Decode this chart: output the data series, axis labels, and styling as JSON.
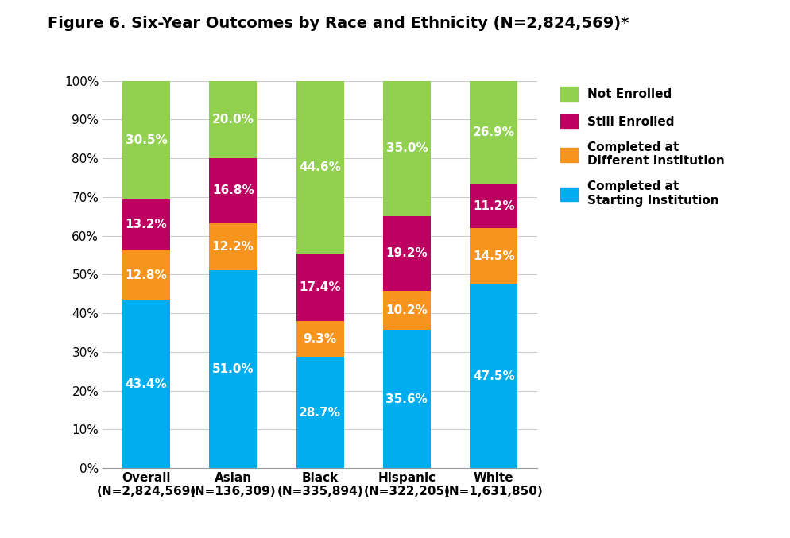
{
  "title": "Figure 6. Six-Year Outcomes by Race and Ethnicity (N=2,824,569)*",
  "categories_line1": [
    "Overall",
    "Asian",
    "Black",
    "Hispanic",
    "White"
  ],
  "categories_line2": [
    "(N=2,824,569)",
    "(N=136,309)",
    "(N=335,894)",
    "(N=322,205)",
    "(N=1,631,850)"
  ],
  "series": {
    "Completed at Starting Institution": [
      43.4,
      51.0,
      28.7,
      35.6,
      47.5
    ],
    "Completed at Different Institution": [
      12.8,
      12.2,
      9.3,
      10.2,
      14.5
    ],
    "Still Enrolled": [
      13.2,
      16.8,
      17.4,
      19.2,
      11.2
    ],
    "Not Enrolled": [
      30.5,
      20.0,
      44.6,
      35.0,
      26.9
    ]
  },
  "series_order": [
    "Completed at Starting Institution",
    "Completed at Different Institution",
    "Still Enrolled",
    "Not Enrolled"
  ],
  "colors": {
    "Completed at Starting Institution": "#00AEEF",
    "Completed at Different Institution": "#F7941D",
    "Still Enrolled": "#BE0060",
    "Not Enrolled": "#92D050"
  },
  "legend_order": [
    "Not Enrolled",
    "Still Enrolled",
    "Completed at Different Institution",
    "Completed at Starting Institution"
  ],
  "legend_labels": {
    "Not Enrolled": "Not Enrolled",
    "Still Enrolled": "Still Enrolled",
    "Completed at Different Institution": "Completed at\nDifferent Institution",
    "Completed at Starting Institution": "Completed at\nStarting Institution"
  },
  "ylim": [
    0,
    100
  ],
  "yticks": [
    0,
    10,
    20,
    30,
    40,
    50,
    60,
    70,
    80,
    90,
    100
  ],
  "ytick_labels": [
    "0%",
    "10%",
    "20%",
    "30%",
    "40%",
    "50%",
    "60%",
    "70%",
    "80%",
    "90%",
    "100%"
  ],
  "bar_width": 0.55,
  "background_color": "#FFFFFF",
  "label_fontsize": 11,
  "title_fontsize": 14,
  "tick_fontsize": 11
}
